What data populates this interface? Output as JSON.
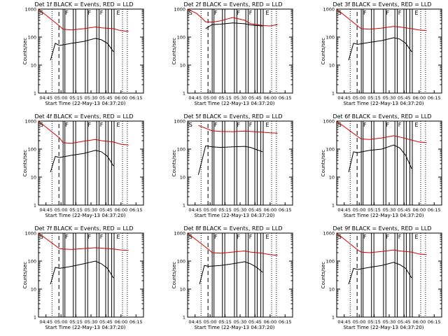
{
  "colors": {
    "events": "#000000",
    "lld": "#d40000",
    "frame": "#000000"
  },
  "chart_data": [
    {
      "type": "line",
      "title": "Det 1f BLACK = Events, RED = LLD",
      "xlabel": "Start Time (22-May-13 04:37:20)",
      "ylabel": "Counts/sec",
      "x_ticks": [
        "04:45",
        "05:00",
        "05:15",
        "05:30",
        "05:45",
        "06:00",
        "06:15"
      ],
      "y_ticks": [
        "1",
        "10",
        "100",
        "1000"
      ],
      "markers": [
        "S",
        "F",
        "F",
        "F",
        "E"
      ],
      "series": [
        {
          "color": "red",
          "x": [
            0,
            0.35,
            0.41,
            0.55,
            0.75,
            0.95,
            1.05,
            1.25,
            1.37,
            1.5
          ],
          "y": [
            1000,
            250,
            190,
            180,
            200,
            230,
            215,
            200,
            170,
            160
          ]
        },
        {
          "color": "black",
          "x": [
            0.2,
            0.28,
            0.35,
            0.55,
            0.75,
            0.95,
            1.05,
            1.15,
            1.25
          ],
          "y": [
            15,
            60,
            50,
            60,
            70,
            90,
            80,
            60,
            30
          ]
        }
      ]
    },
    {
      "type": "line",
      "title": "Det 2f BLACK = Events, RED = LLD",
      "xlabel": "Start Time (22-May-13 04:37:20)",
      "ylabel": "Counts/sec",
      "x_ticks": [
        "04:45",
        "05:00",
        "05:15",
        "05:30",
        "05:45",
        "06:00",
        "06:15"
      ],
      "y_ticks": [
        "1",
        "10",
        "100",
        "1000"
      ],
      "markers": [
        "S",
        "F",
        "F",
        "F",
        "E"
      ],
      "series": [
        {
          "color": "red",
          "x": [
            0,
            0.15,
            0.25,
            0.3,
            0.41,
            0.55,
            0.75,
            0.95,
            1.05,
            1.25,
            1.37,
            1.5
          ],
          "y": [
            1000,
            700,
            450,
            350,
            340,
            380,
            500,
            400,
            300,
            260,
            250,
            280
          ]
        },
        {
          "color": "black",
          "x": [
            0.3,
            0.41,
            0.55,
            0.75,
            0.95,
            1.05,
            1.25
          ],
          "y": [
            200,
            280,
            290,
            320,
            300,
            270,
            250
          ]
        }
      ]
    },
    {
      "type": "line",
      "title": "Det 3f BLACK = Events, RED = LLD",
      "xlabel": "Start Time (22-May-13 04:37:20)",
      "ylabel": "Counts/sec",
      "x_ticks": [
        "04:45",
        "05:00",
        "05:15",
        "05:30",
        "05:45",
        "06:00",
        "06:15"
      ],
      "y_ticks": [
        "1",
        "10",
        "100",
        "1000"
      ],
      "markers": [
        "S",
        "F",
        "F",
        "F",
        "E"
      ],
      "series": [
        {
          "color": "red",
          "x": [
            0,
            0.35,
            0.41,
            0.55,
            0.75,
            0.95,
            1.05,
            1.25,
            1.37,
            1.5
          ],
          "y": [
            1000,
            250,
            200,
            190,
            210,
            240,
            230,
            200,
            180,
            170
          ]
        },
        {
          "color": "black",
          "x": [
            0.2,
            0.28,
            0.35,
            0.55,
            0.75,
            0.95,
            1.05,
            1.15,
            1.25
          ],
          "y": [
            15,
            60,
            55,
            65,
            75,
            95,
            85,
            60,
            30
          ]
        }
      ]
    },
    {
      "type": "line",
      "title": "Det 4f BLACK = Events, RED = LLD",
      "xlabel": "Start Time (22-May-13 04:37:20)",
      "ylabel": "Counts/sec",
      "x_ticks": [
        "04:45",
        "05:00",
        "05:15",
        "05:30",
        "05:45",
        "06:00",
        "06:15"
      ],
      "y_ticks": [
        "1",
        "10",
        "100",
        "1000"
      ],
      "markers": [
        "S",
        "F",
        "F",
        "F",
        "E"
      ],
      "series": [
        {
          "color": "red",
          "x": [
            0,
            0.35,
            0.41,
            0.55,
            0.75,
            0.95,
            1.05,
            1.25,
            1.37,
            1.5
          ],
          "y": [
            1000,
            250,
            170,
            160,
            190,
            220,
            200,
            180,
            150,
            140
          ]
        },
        {
          "color": "black",
          "x": [
            0.2,
            0.28,
            0.35,
            0.55,
            0.75,
            0.95,
            1.05,
            1.15,
            1.25
          ],
          "y": [
            15,
            55,
            50,
            60,
            70,
            90,
            80,
            55,
            25
          ]
        }
      ]
    },
    {
      "type": "line",
      "title": "Det 5f BLACK = Events, RED = LLD",
      "xlabel": "Start Time (22-May-13 04:37:20)",
      "ylabel": "Counts/sec",
      "x_ticks": [
        "04:45",
        "05:00",
        "05:15",
        "05:30",
        "05:45",
        "06:00",
        "06:15"
      ],
      "y_ticks": [
        "1",
        "10",
        "100",
        "1000"
      ],
      "markers": [
        "S",
        "F",
        "F",
        "F",
        "E"
      ],
      "series": [
        {
          "color": "red",
          "x": [
            0.18,
            0.41,
            0.55,
            0.75,
            0.95,
            1.05,
            1.25,
            1.37,
            1.5
          ],
          "y": [
            700,
            450,
            430,
            420,
            440,
            430,
            400,
            380,
            370
          ]
        },
        {
          "color": "black",
          "x": [
            0.18,
            0.3,
            0.41,
            0.55,
            0.75,
            0.95,
            1.05,
            1.25
          ],
          "y": [
            12,
            130,
            120,
            115,
            120,
            125,
            115,
            80
          ]
        }
      ]
    },
    {
      "type": "line",
      "title": "Det 6f BLACK = Events, RED = LLD",
      "xlabel": "Start Time (22-May-13 04:37:20)",
      "ylabel": "Counts/sec",
      "x_ticks": [
        "04:45",
        "05:00",
        "05:15",
        "05:30",
        "05:45",
        "06:00",
        "06:15"
      ],
      "y_ticks": [
        "1",
        "10",
        "100",
        "1000"
      ],
      "markers": [
        "S",
        "F",
        "F",
        "F",
        "E"
      ],
      "series": [
        {
          "color": "red",
          "x": [
            0,
            0.35,
            0.41,
            0.55,
            0.75,
            0.95,
            1.05,
            1.25,
            1.37,
            1.5
          ],
          "y": [
            1000,
            280,
            230,
            220,
            250,
            300,
            270,
            210,
            180,
            170
          ]
        },
        {
          "color": "black",
          "x": [
            0.2,
            0.28,
            0.35,
            0.55,
            0.75,
            0.95,
            1.05,
            1.15,
            1.25
          ],
          "y": [
            15,
            80,
            75,
            90,
            100,
            140,
            110,
            60,
            20
          ]
        }
      ]
    },
    {
      "type": "line",
      "title": "Det 7f BLACK = Events, RED = LLD",
      "xlabel": "Start Time (22-May-13 04:37:20)",
      "ylabel": "Counts/sec",
      "x_ticks": [
        "04:45",
        "05:00",
        "05:15",
        "05:30",
        "05:45",
        "06:00",
        "06:15"
      ],
      "y_ticks": [
        "1",
        "10",
        "100",
        "1000"
      ],
      "markers": [
        "S",
        "F",
        "F",
        "F",
        "E"
      ],
      "series": [
        {
          "color": "red",
          "x": [
            0,
            0.35,
            0.41,
            0.55,
            0.75,
            0.95,
            1.05,
            1.25,
            1.37,
            1.5
          ],
          "y": [
            1000,
            280,
            270,
            260,
            280,
            300,
            290,
            270,
            250,
            240
          ]
        },
        {
          "color": "black",
          "x": [
            0.2,
            0.28,
            0.35,
            0.55,
            0.75,
            0.95,
            1.05,
            1.15,
            1.25
          ],
          "y": [
            15,
            60,
            55,
            65,
            80,
            100,
            80,
            55,
            25
          ]
        }
      ]
    },
    {
      "type": "line",
      "title": "Det 8f BLACK = Events, RED = LLD",
      "xlabel": "Start Time (22-May-13 04:37:20)",
      "ylabel": "Counts/sec",
      "x_ticks": [
        "04:45",
        "05:00",
        "05:15",
        "05:30",
        "05:45",
        "06:00",
        "06:15"
      ],
      "y_ticks": [
        "1",
        "10",
        "100",
        "1000"
      ],
      "markers": [
        "S",
        "F",
        "F",
        "F",
        "E"
      ],
      "series": [
        {
          "color": "red",
          "x": [
            0,
            0.35,
            0.41,
            0.55,
            0.75,
            0.95,
            1.05,
            1.25,
            1.37,
            1.5
          ],
          "y": [
            1000,
            260,
            200,
            190,
            210,
            230,
            210,
            190,
            170,
            160
          ]
        },
        {
          "color": "black",
          "x": [
            0.2,
            0.28,
            0.35,
            0.55,
            0.75,
            0.95,
            1.05,
            1.15,
            1.25
          ],
          "y": [
            15,
            70,
            65,
            70,
            80,
            95,
            80,
            60,
            40
          ]
        }
      ]
    },
    {
      "type": "line",
      "title": "Det 9f BLACK = Events, RED = LLD",
      "xlabel": "Start Time (22-May-13 04:37:20)",
      "ylabel": "Counts/sec",
      "x_ticks": [
        "04:45",
        "05:00",
        "05:15",
        "05:30",
        "05:45",
        "06:00",
        "06:15"
      ],
      "y_ticks": [
        "1",
        "10",
        "100",
        "1000"
      ],
      "markers": [
        "S",
        "F",
        "F",
        "F",
        "E"
      ],
      "series": [
        {
          "color": "red",
          "x": [
            0,
            0.35,
            0.41,
            0.55,
            0.75,
            0.95,
            1.05,
            1.25,
            1.37,
            1.5
          ],
          "y": [
            1000,
            250,
            210,
            200,
            220,
            250,
            230,
            210,
            180,
            170
          ]
        },
        {
          "color": "black",
          "x": [
            0.2,
            0.28,
            0.35,
            0.55,
            0.75,
            0.95,
            1.05,
            1.15,
            1.25
          ],
          "y": [
            15,
            55,
            50,
            60,
            70,
            90,
            75,
            55,
            25
          ]
        }
      ]
    }
  ]
}
